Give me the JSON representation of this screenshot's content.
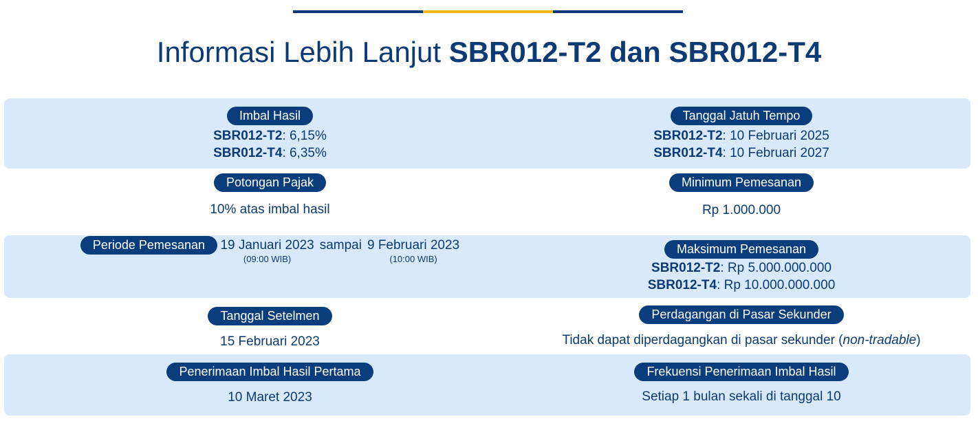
{
  "title": {
    "normal": "Informasi Lebih Lanjut ",
    "bold": "SBR012-T2 dan SBR012-T4"
  },
  "colors": {
    "navy": "#0a3d7c",
    "accent": "#f5b914",
    "band": "#d8e9fc",
    "text": "#0b3a74"
  },
  "imbal_hasil": {
    "label": "Imbal Hasil",
    "t2_code": "SBR012-T2",
    "t2_value": ": 6,15%",
    "t4_code": "SBR012-T4",
    "t4_value": ": 6,35%"
  },
  "jatuh_tempo": {
    "label": "Tanggal Jatuh Tempo",
    "t2_code": "SBR012-T2",
    "t2_value": ": 10 Februari 2025",
    "t4_code": "SBR012-T4",
    "t4_value": ": 10 Februari 2027"
  },
  "potongan_pajak": {
    "label": "Potongan Pajak",
    "value": "10% atas imbal hasil"
  },
  "minimum": {
    "label": "Minimum Pemesanan",
    "value": "Rp 1.000.000"
  },
  "periode": {
    "label": "Periode Pemesanan",
    "start": "19 Januari 2023",
    "start_time": "(09:00 WIB)",
    "sep": "sampai",
    "end": "9 Februari 2023",
    "end_time": "(10:00 WIB)"
  },
  "maksimum": {
    "label": "Maksimum Pemesanan",
    "t2_code": "SBR012-T2",
    "t2_value": ": Rp 5.000.000.000",
    "t4_code": "SBR012-T4",
    "t4_value": ": Rp 10.000.000.000"
  },
  "setelmen": {
    "label": "Tanggal Setelmen",
    "value": "15 Februari 2023"
  },
  "pasar_sekunder": {
    "label": "Perdagangan di Pasar Sekunder",
    "value": "Tidak dapat diperdagangkan di pasar sekunder (",
    "italic": "non-tradable",
    "close": ")"
  },
  "imbal_pertama": {
    "label": "Penerimaan Imbal Hasil Pertama",
    "value": "10 Maret 2023"
  },
  "frekuensi": {
    "label": "Frekuensi Penerimaan Imbal Hasil",
    "value": "Setiap 1 bulan sekali di tanggal 10"
  }
}
